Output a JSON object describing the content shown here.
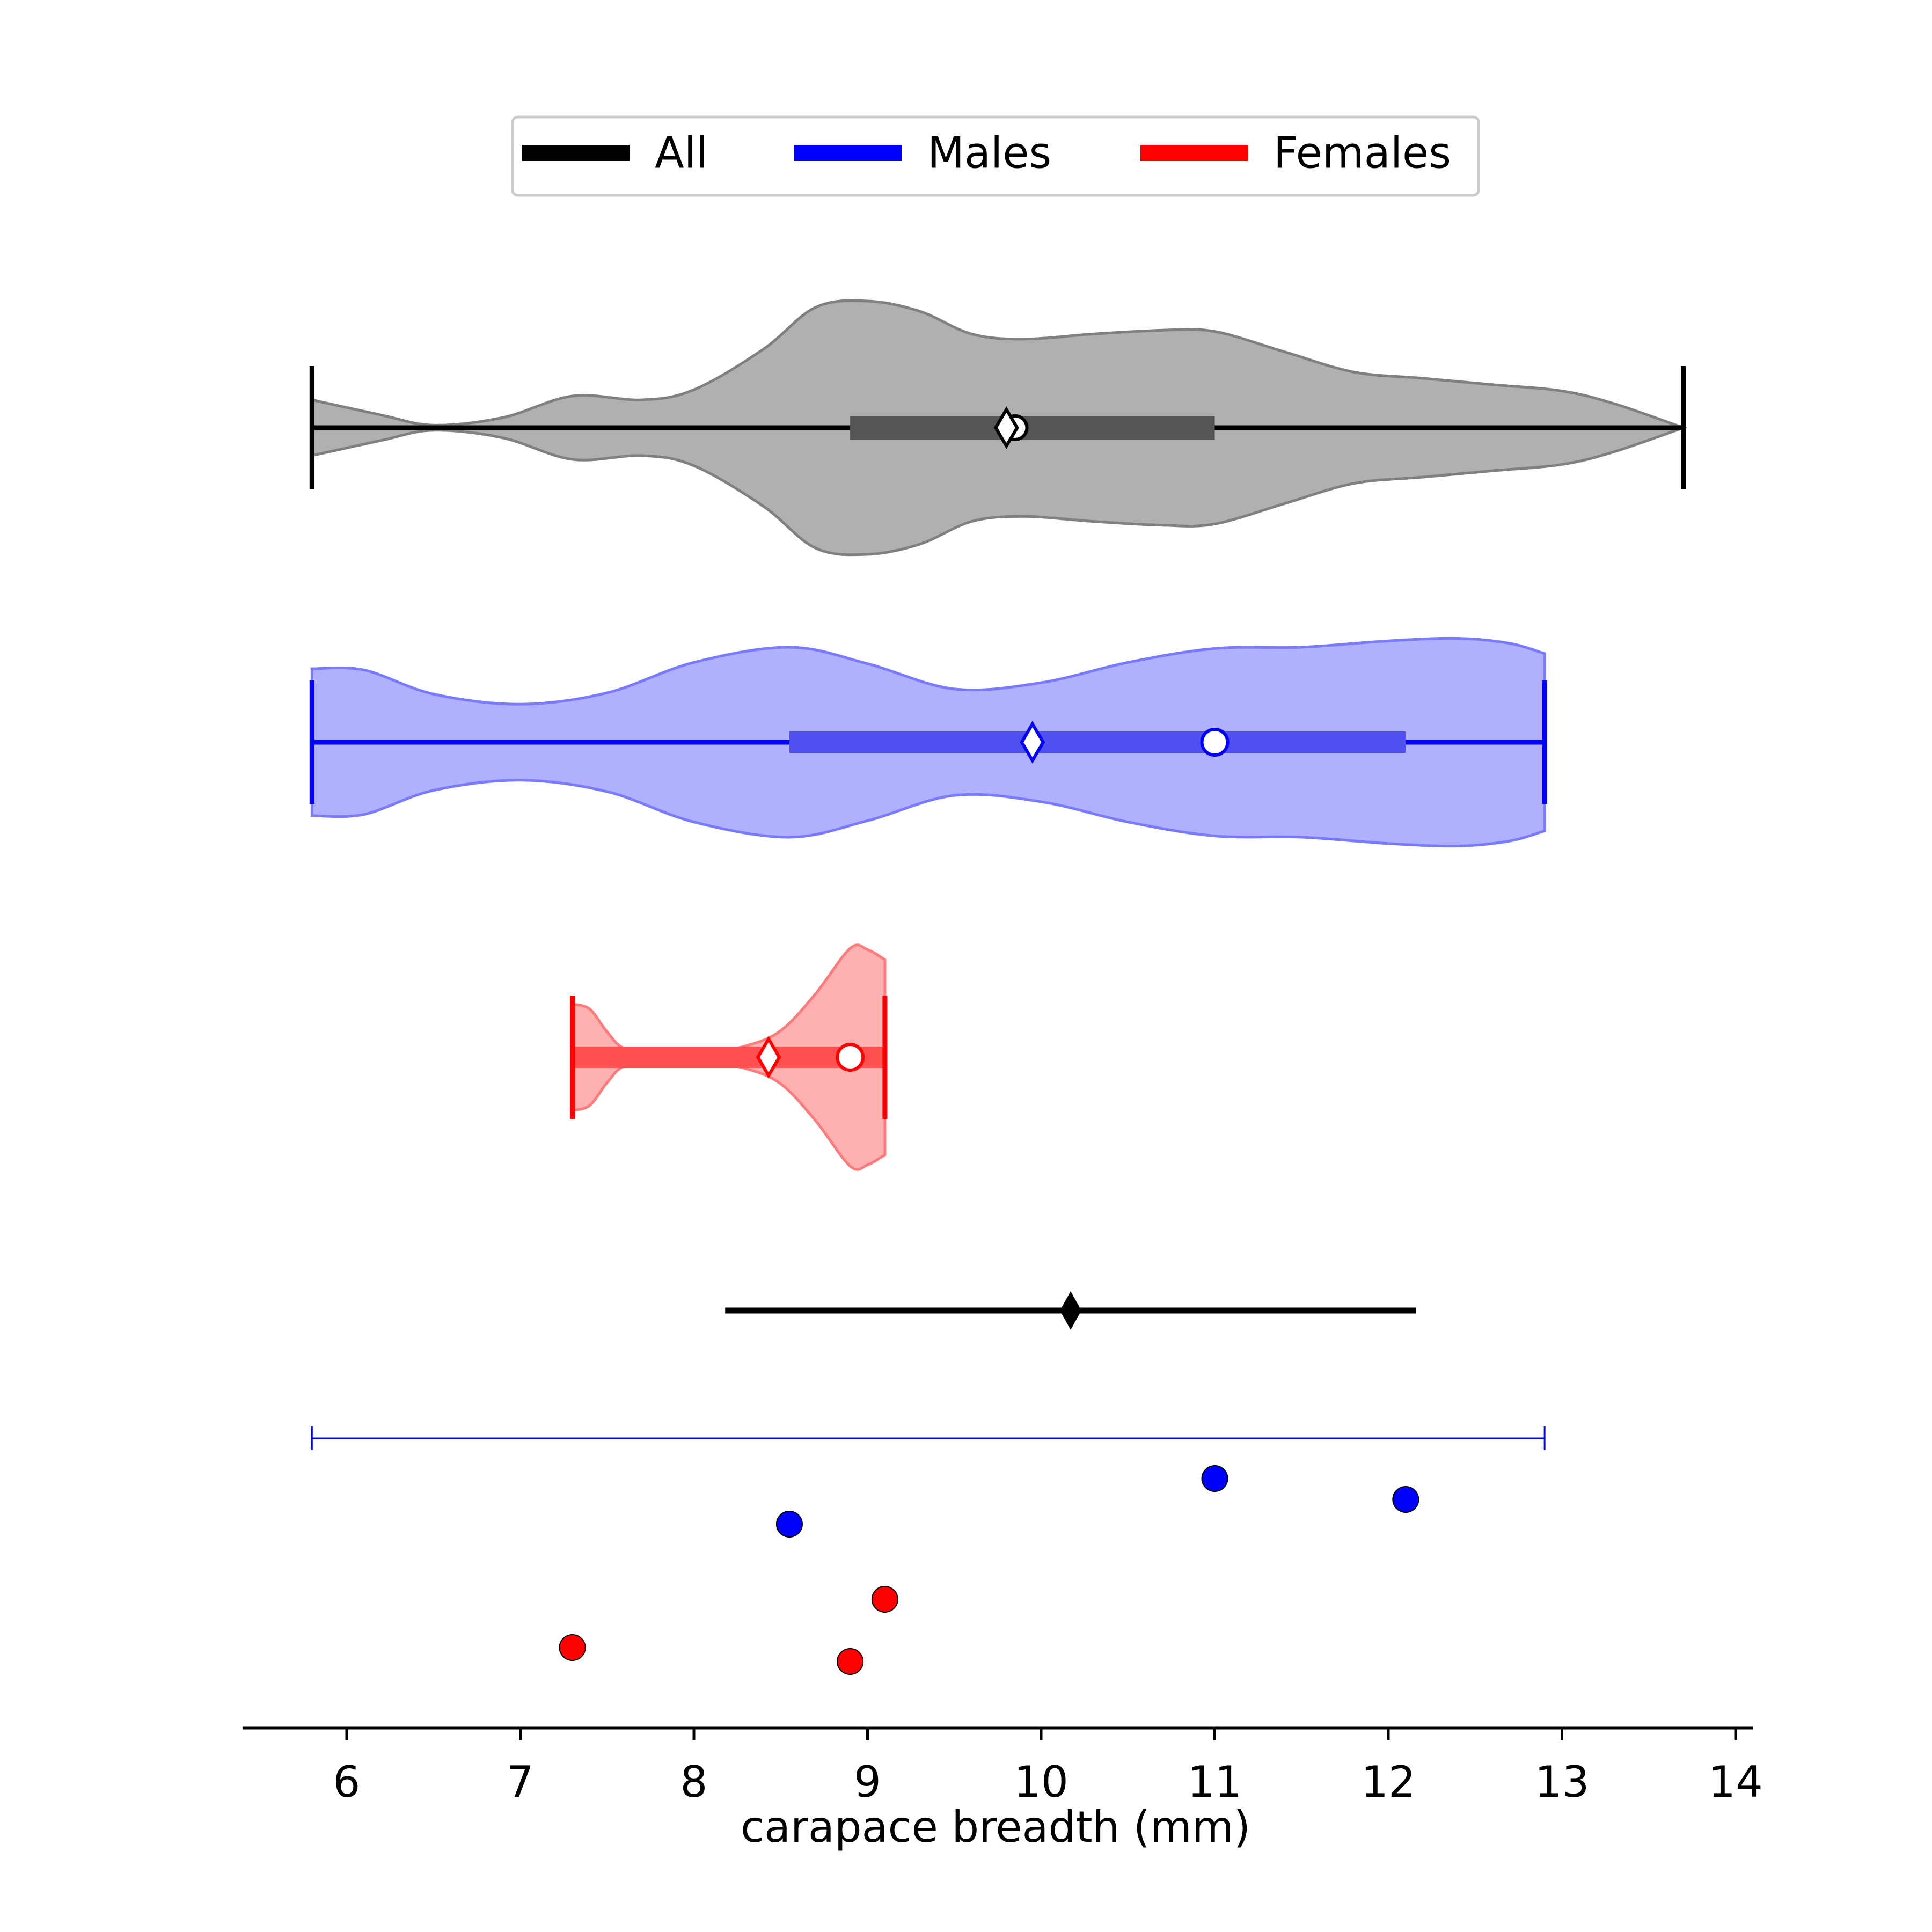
{
  "chart_data": {
    "type": "violin",
    "xlabel": "carapace breadth (mm)",
    "xlim": [
      5.4,
      14.1
    ],
    "xticks": [
      6,
      7,
      8,
      9,
      10,
      11,
      12,
      13,
      14
    ],
    "legend": {
      "placement": "top-center",
      "entries": [
        {
          "label": "All",
          "color": "#000000"
        },
        {
          "label": "Males",
          "color": "#0000ff"
        },
        {
          "label": "Females",
          "color": "#ff0000"
        }
      ]
    },
    "groups": [
      {
        "name": "All",
        "line_color": "#000000",
        "fill_color": "#b0b0b0",
        "edge_color": "#808080",
        "iqr_color": "#555555",
        "min": 5.8,
        "max": 13.7,
        "q1": 8.9,
        "q3": 11.0,
        "mean": 9.8,
        "median": 9.85,
        "density": [
          [
            5.8,
            0.22
          ],
          [
            6.2,
            0.1
          ],
          [
            6.5,
            0.02
          ],
          [
            6.9,
            0.08
          ],
          [
            7.3,
            0.25
          ],
          [
            7.7,
            0.22
          ],
          [
            8.0,
            0.3
          ],
          [
            8.4,
            0.62
          ],
          [
            8.7,
            0.95
          ],
          [
            9.0,
            1.0
          ],
          [
            9.3,
            0.92
          ],
          [
            9.6,
            0.74
          ],
          [
            9.9,
            0.7
          ],
          [
            10.3,
            0.74
          ],
          [
            10.7,
            0.77
          ],
          [
            11.0,
            0.76
          ],
          [
            11.4,
            0.6
          ],
          [
            11.8,
            0.44
          ],
          [
            12.2,
            0.39
          ],
          [
            12.6,
            0.34
          ],
          [
            13.0,
            0.29
          ],
          [
            13.3,
            0.19
          ],
          [
            13.7,
            0.0
          ]
        ]
      },
      {
        "name": "Males",
        "line_color": "#0000ff",
        "fill_color": "#b0b0ff",
        "edge_color": "#7a7aff",
        "iqr_color": "#5050f0",
        "min": 5.8,
        "max": 12.9,
        "q1": 8.55,
        "q3": 12.1,
        "mean": 9.95,
        "median": 11.0,
        "density": [
          [
            5.8,
            0.58
          ],
          [
            6.1,
            0.57
          ],
          [
            6.5,
            0.38
          ],
          [
            7.0,
            0.3
          ],
          [
            7.5,
            0.39
          ],
          [
            8.0,
            0.63
          ],
          [
            8.55,
            0.75
          ],
          [
            9.0,
            0.62
          ],
          [
            9.5,
            0.42
          ],
          [
            10.0,
            0.47
          ],
          [
            10.5,
            0.63
          ],
          [
            11.0,
            0.74
          ],
          [
            11.5,
            0.75
          ],
          [
            12.0,
            0.8
          ],
          [
            12.4,
            0.82
          ],
          [
            12.7,
            0.78
          ],
          [
            12.9,
            0.7
          ]
        ]
      },
      {
        "name": "Females",
        "line_color": "#ff0000",
        "fill_color": "#ffb0b0",
        "edge_color": "#ff7a7a",
        "iqr_color": "#ff5050",
        "min": 7.3,
        "max": 9.1,
        "q1": 7.3,
        "q3": 9.1,
        "mean": 8.43,
        "median": 8.9,
        "density": [
          [
            7.3,
            0.42
          ],
          [
            7.4,
            0.38
          ],
          [
            7.5,
            0.2
          ],
          [
            7.6,
            0.07
          ],
          [
            7.8,
            0.04
          ],
          [
            8.1,
            0.05
          ],
          [
            8.3,
            0.09
          ],
          [
            8.5,
            0.21
          ],
          [
            8.7,
            0.5
          ],
          [
            8.9,
            0.86
          ],
          [
            9.0,
            0.85
          ],
          [
            9.1,
            0.77
          ]
        ]
      }
    ],
    "summary": {
      "center": 10.17,
      "low": 8.18,
      "high": 12.16,
      "color": "#000000"
    },
    "range_bar": {
      "low": 5.8,
      "high": 12.9,
      "color": "#0000ff"
    },
    "points": [
      {
        "x": 8.55,
        "group": "Males",
        "color": "#0000ff"
      },
      {
        "x": 11.0,
        "group": "Males",
        "color": "#0000ff"
      },
      {
        "x": 12.1,
        "group": "Males",
        "color": "#0000ff"
      },
      {
        "x": 9.1,
        "group": "Females",
        "color": "#ff0000"
      },
      {
        "x": 7.3,
        "group": "Females",
        "color": "#ff0000"
      },
      {
        "x": 8.9,
        "group": "Females",
        "color": "#ff0000"
      }
    ]
  }
}
